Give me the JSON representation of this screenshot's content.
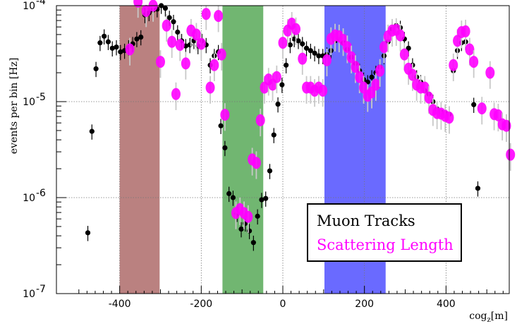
{
  "chart_data": {
    "type": "scatter",
    "ylabel": "events per bin [Hz]",
    "xlabel": "cog",
    "xlabel_sub": "z",
    "xlabel_unit": "[m]",
    "xlim": [
      -555,
      555
    ],
    "ylim": [
      1e-07,
      0.0001
    ],
    "log_y": true,
    "grid": true,
    "x_ticks": [
      -400,
      -200,
      0,
      200,
      400
    ],
    "x_tick_labels": [
      "-400",
      "-200",
      "0",
      "200",
      "400"
    ],
    "y_ticks": [
      1e-07,
      1e-06,
      1e-05,
      0.0001
    ],
    "y_tick_labels": [
      {
        "base": "10",
        "exp": "-7"
      },
      {
        "base": "10",
        "exp": "-6"
      },
      {
        "base": "10",
        "exp": "-5"
      },
      {
        "base": "10",
        "exp": "-4"
      }
    ],
    "bands": [
      {
        "x0": -400,
        "x1": -302,
        "color": "#a0504f"
      },
      {
        "x0": -148,
        "x1": -48,
        "color": "#3a9a3a"
      },
      {
        "x0": 102,
        "x1": 252,
        "color": "#3030ff"
      }
    ],
    "legend": {
      "position": "bottom-right",
      "entries": [
        {
          "label": "Muon Tracks",
          "color": "#000000"
        },
        {
          "label": "Scattering Length",
          "color": "#ff00ff"
        }
      ]
    },
    "series": [
      {
        "name": "Muon Tracks",
        "color": "#000000",
        "points": [
          [
            -478,
            4.3e-07
          ],
          [
            -468,
            4.9e-06
          ],
          [
            -458,
            2.2e-05
          ],
          [
            -448,
            4.1e-05
          ],
          [
            -438,
            4.8e-05
          ],
          [
            -428,
            4.2e-05
          ],
          [
            -418,
            3.6e-05
          ],
          [
            -408,
            3.7e-05
          ],
          [
            -398,
            3.3e-05
          ],
          [
            -388,
            3.4e-05
          ],
          [
            -378,
            3.7e-05
          ],
          [
            -368,
            4e-05
          ],
          [
            -358,
            4.5e-05
          ],
          [
            -348,
            4.7e-05
          ],
          [
            -338,
            8e-05
          ],
          [
            -328,
            8.4e-05
          ],
          [
            -318,
            9e-05
          ],
          [
            -308,
            9.2e-05
          ],
          [
            -298,
            0.0001
          ],
          [
            -288,
            9.4e-05
          ],
          [
            -278,
            7.5e-05
          ],
          [
            -268,
            6.8e-05
          ],
          [
            -258,
            5.3e-05
          ],
          [
            -248,
            4.3e-05
          ],
          [
            -238,
            3.8e-05
          ],
          [
            -228,
            3.9e-05
          ],
          [
            -218,
            4.3e-05
          ],
          [
            -208,
            3.8e-05
          ],
          [
            -198,
            4.3e-05
          ],
          [
            -188,
            3.9e-05
          ],
          [
            -178,
            2.4e-05
          ],
          [
            -168,
            3e-05
          ],
          [
            -158,
            3.3e-05
          ],
          [
            -152,
            5.6e-06
          ],
          [
            -142,
            3.3e-06
          ],
          [
            -132,
            1.1e-06
          ],
          [
            -122,
            1e-06
          ],
          [
            -112,
            6.8e-07
          ],
          [
            -102,
            4.7e-07
          ],
          [
            -92,
            5.4e-07
          ],
          [
            -82,
            4.5e-07
          ],
          [
            -72,
            3.4e-07
          ],
          [
            -62,
            6.4e-07
          ],
          [
            -52,
            9.5e-07
          ],
          [
            -42,
            9.8e-07
          ],
          [
            -32,
            1.9e-06
          ],
          [
            -22,
            4.5e-06
          ],
          [
            -12,
            9.4e-06
          ],
          [
            -2,
            1.5e-05
          ],
          [
            8,
            2.4e-05
          ],
          [
            18,
            3.9e-05
          ],
          [
            28,
            4.5e-05
          ],
          [
            38,
            4.3e-05
          ],
          [
            48,
            4e-05
          ],
          [
            58,
            3.6e-05
          ],
          [
            68,
            3.4e-05
          ],
          [
            78,
            3.2e-05
          ],
          [
            88,
            3e-05
          ],
          [
            98,
            3e-05
          ],
          [
            108,
            3.1e-05
          ],
          [
            118,
            3.4e-05
          ],
          [
            128,
            4.3e-05
          ],
          [
            138,
            4.6e-05
          ],
          [
            148,
            4.1e-05
          ],
          [
            158,
            3.5e-05
          ],
          [
            168,
            2.9e-05
          ],
          [
            178,
            2.5e-05
          ],
          [
            188,
            2.1e-05
          ],
          [
            198,
            1.7e-05
          ],
          [
            208,
            1.6e-05
          ],
          [
            218,
            1.8e-05
          ],
          [
            228,
            2e-05
          ],
          [
            238,
            2.3e-05
          ],
          [
            248,
            3e-05
          ],
          [
            258,
            4.2e-05
          ],
          [
            268,
            5.7e-05
          ],
          [
            278,
            6.2e-05
          ],
          [
            288,
            5.9e-05
          ],
          [
            298,
            4.5e-05
          ],
          [
            308,
            3.6e-05
          ],
          [
            318,
            2.4e-05
          ],
          [
            328,
            1.8e-05
          ],
          [
            338,
            1.6e-05
          ],
          [
            348,
            1.3e-05
          ],
          [
            358,
            1.2e-05
          ],
          [
            368,
            1e-05
          ],
          [
            378,
            8.4e-06
          ],
          [
            388,
            7.8e-06
          ],
          [
            398,
            7.6e-06
          ],
          [
            408,
            7.4e-06
          ],
          [
            418,
            2.1e-05
          ],
          [
            428,
            3.4e-05
          ],
          [
            438,
            4.1e-05
          ],
          [
            448,
            4.2e-05
          ],
          [
            468,
            9.3e-06
          ],
          [
            478,
            1.25e-06
          ]
        ]
      },
      {
        "name": "Scattering Length",
        "color": "#ff00ff",
        "points": [
          [
            -375,
            3.5e-05
          ],
          [
            -355,
            0.00011
          ],
          [
            -335,
            8.8e-05
          ],
          [
            -318,
            0.0001
          ],
          [
            -300,
            2.6e-05
          ],
          [
            -285,
            6.2e-05
          ],
          [
            -272,
            4.2e-05
          ],
          [
            -262,
            1.2e-05
          ],
          [
            -252,
            3.9e-05
          ],
          [
            -238,
            2.5e-05
          ],
          [
            -225,
            5.5e-05
          ],
          [
            -212,
            5e-05
          ],
          [
            -200,
            4e-05
          ],
          [
            -188,
            8.2e-05
          ],
          [
            -178,
            1.4e-05
          ],
          [
            -168,
            2.4e-05
          ],
          [
            -158,
            7.8e-05
          ],
          [
            -150,
            3.1e-05
          ],
          [
            -142,
            7.3e-06
          ],
          [
            -115,
            6.9e-07
          ],
          [
            -105,
            7.6e-07
          ],
          [
            -95,
            6.9e-07
          ],
          [
            -85,
            6.3e-07
          ],
          [
            -75,
            2.5e-06
          ],
          [
            -65,
            2.3e-06
          ],
          [
            -55,
            6.4e-06
          ],
          [
            -45,
            1.4e-05
          ],
          [
            -35,
            1.7e-05
          ],
          [
            -25,
            1.5e-05
          ],
          [
            -15,
            1.8e-05
          ],
          [
            0,
            4.1e-05
          ],
          [
            12,
            5.5e-05
          ],
          [
            22,
            6.5e-05
          ],
          [
            32,
            5.7e-05
          ],
          [
            48,
            2.8e-05
          ],
          [
            58,
            1.4e-05
          ],
          [
            68,
            1.4e-05
          ],
          [
            78,
            1.3e-05
          ],
          [
            88,
            1.4e-05
          ],
          [
            98,
            1.3e-05
          ],
          [
            108,
            2.7e-05
          ],
          [
            118,
            4.5e-05
          ],
          [
            128,
            4.9e-05
          ],
          [
            138,
            4.8e-05
          ],
          [
            148,
            4.4e-05
          ],
          [
            158,
            3.7e-05
          ],
          [
            168,
            2.9e-05
          ],
          [
            178,
            2.3e-05
          ],
          [
            188,
            1.8e-05
          ],
          [
            198,
            1.4e-05
          ],
          [
            208,
            1.15e-05
          ],
          [
            218,
            1.25e-05
          ],
          [
            228,
            1.5e-05
          ],
          [
            238,
            2.1e-05
          ],
          [
            248,
            3.7e-05
          ],
          [
            258,
            4.8e-05
          ],
          [
            268,
            5.5e-05
          ],
          [
            278,
            5.6e-05
          ],
          [
            288,
            4.9e-05
          ],
          [
            298,
            3.1e-05
          ],
          [
            308,
            2.2e-05
          ],
          [
            318,
            1.9e-05
          ],
          [
            328,
            1.5e-05
          ],
          [
            338,
            1.4e-05
          ],
          [
            348,
            1.4e-05
          ],
          [
            358,
            1.1e-05
          ],
          [
            368,
            8.2e-06
          ],
          [
            378,
            7.6e-06
          ],
          [
            388,
            7.5e-06
          ],
          [
            398,
            7.1e-06
          ],
          [
            408,
            6.8e-06
          ],
          [
            418,
            2.4e-05
          ],
          [
            428,
            4.3e-05
          ],
          [
            438,
            5.3e-05
          ],
          [
            448,
            5.4e-05
          ],
          [
            458,
            3.5e-05
          ],
          [
            468,
            2.6e-05
          ],
          [
            488,
            8.5e-06
          ],
          [
            508,
            2e-05
          ],
          [
            518,
            7.4e-06
          ],
          [
            528,
            7.2e-06
          ],
          [
            538,
            5.8e-06
          ],
          [
            548,
            5.6e-06
          ],
          [
            558,
            2.8e-06
          ]
        ]
      }
    ]
  }
}
